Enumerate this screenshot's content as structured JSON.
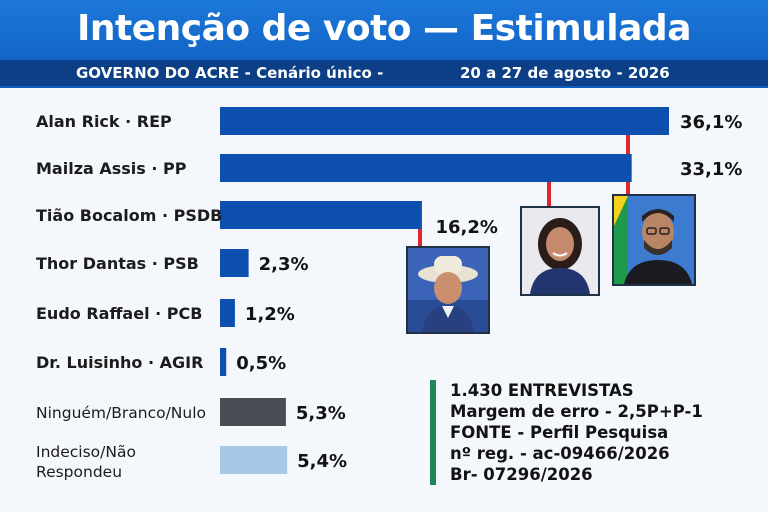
{
  "header": {
    "title": "Intenção de voto — Estimulada",
    "subtitle_left": "GOVERNO DO ACRE - Cenário único -",
    "subtitle_right": "20 a 27 de agosto - 2026"
  },
  "chart_data": {
    "type": "bar",
    "orientation": "horizontal",
    "categories": [
      "Alan Rick · REP",
      "Mailza Assis · PP",
      "Tião Bocalom · PSDB",
      "Thor Dantas · PSB",
      "Eudo Raffael · PCB",
      "Dr. Luisinho · AGIR",
      "Ninguém/Branco/Nulo",
      "Indeciso/Não Respondeu"
    ],
    "values": [
      36.1,
      33.1,
      16.2,
      2.3,
      1.2,
      0.5,
      5.3,
      5.4
    ],
    "value_labels": [
      "36,1%",
      "33,1%",
      "16,2%",
      "2,3%",
      "1,2%",
      "0,5%",
      "5,3%",
      "5,4%"
    ],
    "bar_colors": [
      "#0d4fae",
      "#0d4fae",
      "#0d4fae",
      "#0d4fae",
      "#0d4fae",
      "#0d4fae",
      "#4a4e54",
      "#a9c8e8"
    ],
    "connector_color": "#e0262d",
    "xlabel": "",
    "ylabel": "",
    "xlim": [
      0,
      36.1
    ],
    "grid": false,
    "legend": "none"
  },
  "photos": [
    {
      "name": "Tião Bocalom"
    },
    {
      "name": "Mailza Assis"
    },
    {
      "name": "Alan Rick"
    }
  ],
  "info": {
    "interviews": "1.430 ENTREVISTAS",
    "margin": "Margem de erro - 2,5P+P-1",
    "source": "FONTE - Perfil Pesquisa",
    "registration": "nº reg. - ac-09466/2026",
    "br": "Br- 07296/2026"
  }
}
